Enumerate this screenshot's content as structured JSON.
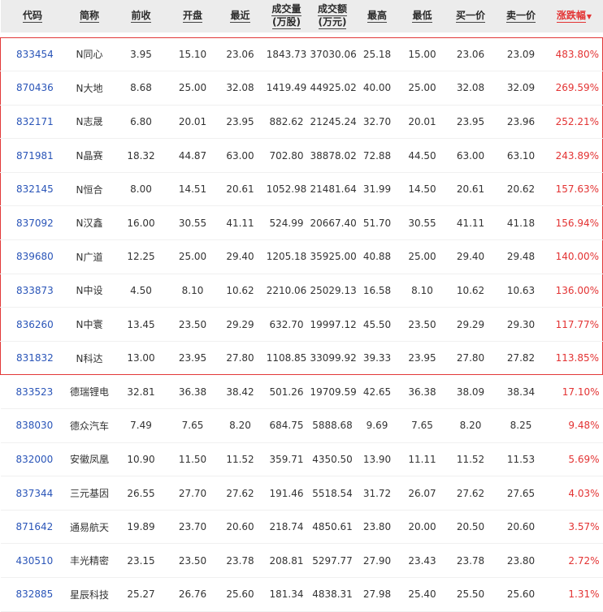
{
  "headers": [
    "代码",
    "简称",
    "前收",
    "开盘",
    "最近",
    "成交量\n(万股)",
    "成交额\n(万元)",
    "最高",
    "最低",
    "买一价",
    "卖一价",
    "涨跌幅"
  ],
  "sort_arrow": "▼",
  "colors": {
    "up": "#e33333",
    "code": "#2a55b8",
    "highlight_border": "#e23838",
    "header_bg": "#ececec"
  },
  "rows": [
    [
      "833454",
      "N同心",
      "3.95",
      "15.10",
      "23.06",
      "1843.73",
      "37030.06",
      "25.18",
      "15.00",
      "23.06",
      "23.09",
      "483.80%"
    ],
    [
      "870436",
      "N大地",
      "8.68",
      "25.00",
      "32.08",
      "1419.49",
      "44925.02",
      "40.00",
      "25.00",
      "32.08",
      "32.09",
      "269.59%"
    ],
    [
      "832171",
      "N志晟",
      "6.80",
      "20.01",
      "23.95",
      "882.62",
      "21245.24",
      "32.70",
      "20.01",
      "23.95",
      "23.96",
      "252.21%"
    ],
    [
      "871981",
      "N晶赛",
      "18.32",
      "44.87",
      "63.00",
      "702.80",
      "38878.02",
      "72.88",
      "44.50",
      "63.00",
      "63.10",
      "243.89%"
    ],
    [
      "832145",
      "N恒合",
      "8.00",
      "14.51",
      "20.61",
      "1052.98",
      "21481.64",
      "31.99",
      "14.50",
      "20.61",
      "20.62",
      "157.63%"
    ],
    [
      "837092",
      "N汉鑫",
      "16.00",
      "30.55",
      "41.11",
      "524.99",
      "20667.40",
      "51.70",
      "30.55",
      "41.11",
      "41.18",
      "156.94%"
    ],
    [
      "839680",
      "N广道",
      "12.25",
      "25.00",
      "29.40",
      "1205.18",
      "35925.00",
      "40.88",
      "25.00",
      "29.40",
      "29.48",
      "140.00%"
    ],
    [
      "833873",
      "N中设",
      "4.50",
      "8.10",
      "10.62",
      "2210.06",
      "25029.13",
      "16.58",
      "8.10",
      "10.62",
      "10.63",
      "136.00%"
    ],
    [
      "836260",
      "N中寰",
      "13.45",
      "23.50",
      "29.29",
      "632.70",
      "19997.12",
      "45.50",
      "23.50",
      "29.29",
      "29.30",
      "117.77%"
    ],
    [
      "831832",
      "N科达",
      "13.00",
      "23.95",
      "27.80",
      "1108.85",
      "33099.92",
      "39.33",
      "23.95",
      "27.80",
      "27.82",
      "113.85%"
    ],
    [
      "833523",
      "德瑞锂电",
      "32.81",
      "36.38",
      "38.42",
      "501.26",
      "19709.59",
      "42.65",
      "36.38",
      "38.09",
      "38.34",
      "17.10%"
    ],
    [
      "838030",
      "德众汽车",
      "7.49",
      "7.65",
      "8.20",
      "684.75",
      "5888.68",
      "9.69",
      "7.65",
      "8.20",
      "8.25",
      "9.48%"
    ],
    [
      "832000",
      "安徽凤凰",
      "10.90",
      "11.50",
      "11.52",
      "359.71",
      "4350.50",
      "13.90",
      "11.11",
      "11.52",
      "11.53",
      "5.69%"
    ],
    [
      "837344",
      "三元基因",
      "26.55",
      "27.70",
      "27.62",
      "191.46",
      "5518.54",
      "31.72",
      "26.07",
      "27.62",
      "27.65",
      "4.03%"
    ],
    [
      "871642",
      "通易航天",
      "19.89",
      "23.70",
      "20.60",
      "218.74",
      "4850.61",
      "23.80",
      "20.00",
      "20.50",
      "20.60",
      "3.57%"
    ],
    [
      "430510",
      "丰光精密",
      "23.15",
      "23.50",
      "23.78",
      "208.81",
      "5297.77",
      "27.90",
      "23.43",
      "23.78",
      "23.80",
      "2.72%"
    ],
    [
      "832885",
      "星辰科技",
      "25.27",
      "26.76",
      "25.60",
      "181.34",
      "4838.31",
      "27.98",
      "25.40",
      "25.50",
      "25.60",
      "1.31%"
    ]
  ],
  "highlight_rows": 10
}
